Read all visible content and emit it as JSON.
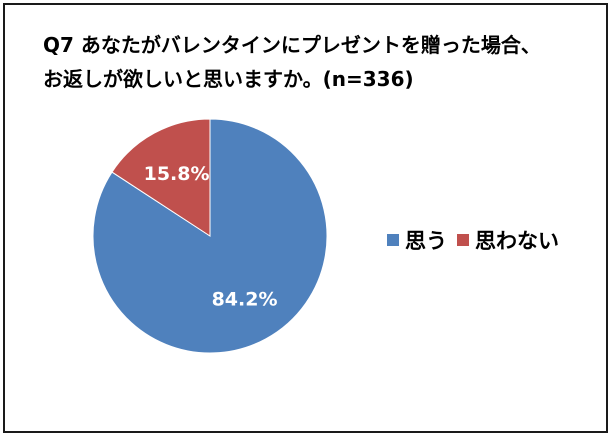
{
  "title": "Q7 あなたがバレンタインにプレゼントを贈った場合、\nお返しが欲しいと思いますか。(n=336)",
  "chart_data": {
    "type": "pie",
    "title": "Q7 あなたがバレンタインにプレゼントを贈った場合、\nお返しが欲しいと思いますか。(n=336)",
    "slices": [
      {
        "label": "思う",
        "value": 84.2,
        "display": "84.2%",
        "color": "#4f81bd"
      },
      {
        "label": "思わない",
        "value": 15.8,
        "display": "15.8%",
        "color": "#c0504d"
      }
    ],
    "legend_position": "right"
  }
}
